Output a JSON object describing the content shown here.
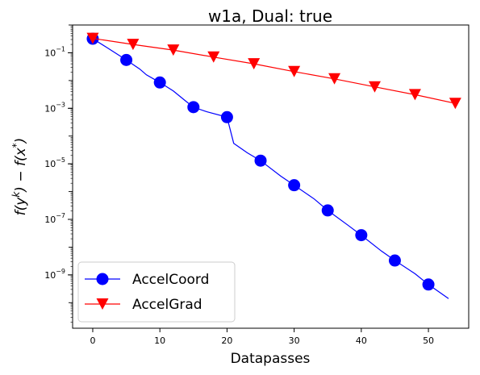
{
  "chart_data": {
    "type": "line",
    "title": "w1a, Dual: true",
    "xlabel": "Datapasses",
    "ylabel": "f(y^k) − f(x^*)",
    "ylabel_parts": {
      "f1": "f(y",
      "k": "k",
      "mid": ") − f(x",
      "star": "*",
      "end": ")"
    },
    "xlim": [
      -3,
      56
    ],
    "ylim": [
      1.2e-11,
      1.0
    ],
    "yscale": "log",
    "grid": false,
    "legend_position": "lower-left",
    "x_ticks": [
      0,
      10,
      20,
      30,
      40,
      50
    ],
    "x_tick_labels": [
      "0",
      "10",
      "20",
      "30",
      "40",
      "50"
    ],
    "y_ticks": [
      0.1,
      0.001,
      1e-05,
      1e-07,
      1e-09
    ],
    "y_tick_labels": [
      {
        "base": "10",
        "exp": "−1"
      },
      {
        "base": "10",
        "exp": "−3"
      },
      {
        "base": "10",
        "exp": "−5"
      },
      {
        "base": "10",
        "exp": "−7"
      },
      {
        "base": "10",
        "exp": "−9"
      }
    ],
    "series": [
      {
        "name": "AccelCoord",
        "color": "#0000ff",
        "marker": "circle",
        "line": [
          [
            0,
            0.32
          ],
          [
            2,
            0.16
          ],
          [
            5,
            0.055
          ],
          [
            7,
            0.026
          ],
          [
            8,
            0.016
          ],
          [
            10,
            0.0085
          ],
          [
            12,
            0.0042
          ],
          [
            14,
            0.0017
          ],
          [
            15,
            0.0011
          ],
          [
            17,
            0.00075
          ],
          [
            20,
            0.00048
          ],
          [
            21,
            5.5e-05
          ],
          [
            23,
            2.5e-05
          ],
          [
            25,
            1.3e-05
          ],
          [
            28,
            3.6e-06
          ],
          [
            30,
            1.7e-06
          ],
          [
            33,
            5.4e-07
          ],
          [
            35,
            2.1e-07
          ],
          [
            38,
            6.2e-08
          ],
          [
            40,
            2.7e-08
          ],
          [
            43,
            7.2e-09
          ],
          [
            45,
            3.3e-09
          ],
          [
            48,
            1.1e-09
          ],
          [
            50,
            4.5e-10
          ],
          [
            53,
            1.4e-10
          ]
        ],
        "markers": [
          [
            0,
            0.32
          ],
          [
            5,
            0.055
          ],
          [
            10,
            0.0085
          ],
          [
            15,
            0.0011
          ],
          [
            20,
            0.00048
          ],
          [
            25,
            1.3e-05
          ],
          [
            30,
            1.7e-06
          ],
          [
            35,
            2.1e-07
          ],
          [
            40,
            2.7e-08
          ],
          [
            45,
            3.3e-09
          ],
          [
            50,
            4.5e-10
          ]
        ]
      },
      {
        "name": "AccelGrad",
        "color": "#ff0000",
        "marker": "triangle-down",
        "line": [
          [
            0,
            0.33
          ],
          [
            6,
            0.2
          ],
          [
            12,
            0.125
          ],
          [
            18,
            0.07
          ],
          [
            24,
            0.04
          ],
          [
            30,
            0.021
          ],
          [
            36,
            0.0115
          ],
          [
            42,
            0.0059
          ],
          [
            48,
            0.0031
          ],
          [
            54,
            0.0015
          ]
        ],
        "markers": [
          [
            0,
            0.33
          ],
          [
            6,
            0.2
          ],
          [
            12,
            0.125
          ],
          [
            18,
            0.07
          ],
          [
            24,
            0.04
          ],
          [
            30,
            0.021
          ],
          [
            36,
            0.0115
          ],
          [
            42,
            0.0059
          ],
          [
            48,
            0.0031
          ],
          [
            54,
            0.0015
          ]
        ]
      }
    ]
  }
}
